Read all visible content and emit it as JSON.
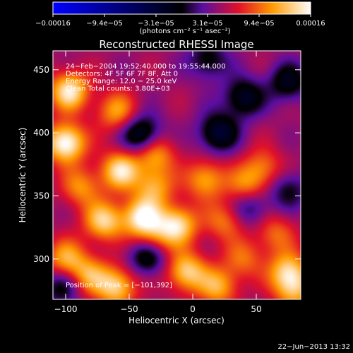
{
  "chart_data": {
    "type": "heatmap",
    "title": "Reconstructed RHESSI Image",
    "xlabel": "Heliocentric X (arcsec)",
    "ylabel": "Heliocentric Y (arcsec)",
    "xlim": [
      -110,
      85
    ],
    "ylim": [
      268,
      465
    ],
    "x_ticks": [
      -100,
      -50,
      0,
      50
    ],
    "y_ticks": [
      300,
      350,
      400,
      450
    ],
    "x_tick_labels": [
      "−100",
      "−50",
      "0",
      "50"
    ],
    "y_tick_labels": [
      "300",
      "350",
      "400",
      "450"
    ],
    "colorbar": {
      "tick_labels": [
        "−0.00016",
        "−9.4e−05",
        "−3.1e−05",
        "3.1e−05",
        "9.4e−05",
        "0.00016"
      ],
      "unit_label": "(photons cm⁻² s⁻¹ asec⁻²)",
      "range": [
        -0.00016,
        0.00016
      ],
      "colors": [
        "#0000ff",
        "#000000",
        "#ff0000",
        "#ffffff"
      ]
    },
    "annotations": [
      "24−Feb−2004 19:52:40.000 to 19:55:44.000",
      "Detectors: 4F 5F 6F 7F 8F, Att 0",
      "Energy Range: 12.0 − 25.0 keV",
      "Clean    Total counts: 3.80E+03"
    ],
    "peak_label": "Position of Peak = [−101,392]",
    "peak": {
      "x": -101,
      "y": 392
    },
    "blobs": [
      {
        "x": -100,
        "y": 392,
        "v": 1.0
      },
      {
        "x": -97,
        "y": 433,
        "v": 0.85
      },
      {
        "x": -60,
        "y": 417,
        "v": 0.55
      },
      {
        "x": -88,
        "y": 357,
        "v": 0.5
      },
      {
        "x": -57,
        "y": 370,
        "v": 0.8
      },
      {
        "x": -30,
        "y": 383,
        "v": 0.6
      },
      {
        "x": -30,
        "y": 357,
        "v": 0.55
      },
      {
        "x": 10,
        "y": 363,
        "v": 0.6
      },
      {
        "x": 42,
        "y": 357,
        "v": 0.5
      },
      {
        "x": 55,
        "y": 372,
        "v": 0.45
      },
      {
        "x": -70,
        "y": 330,
        "v": 0.75
      },
      {
        "x": -40,
        "y": 333,
        "v": 0.85
      },
      {
        "x": -12,
        "y": 327,
        "v": 0.8
      },
      {
        "x": -30,
        "y": 315,
        "v": 0.5
      },
      {
        "x": 25,
        "y": 330,
        "v": 0.45
      },
      {
        "x": 65,
        "y": 320,
        "v": 0.4
      },
      {
        "x": -100,
        "y": 300,
        "v": 0.6
      },
      {
        "x": -82,
        "y": 287,
        "v": 0.55
      },
      {
        "x": -60,
        "y": 278,
        "v": 0.75
      },
      {
        "x": -5,
        "y": 290,
        "v": 0.75
      },
      {
        "x": 20,
        "y": 278,
        "v": 0.6
      },
      {
        "x": 75,
        "y": 290,
        "v": 0.7
      },
      {
        "x": 80,
        "y": 275,
        "v": 0.55
      },
      {
        "x": 40,
        "y": 300,
        "v": 0.4
      }
    ],
    "dips": [
      {
        "x": -40,
        "y": 398,
        "v": 0.55
      },
      {
        "x": 20,
        "y": 400,
        "v": 0.5
      },
      {
        "x": 40,
        "y": 428,
        "v": 0.45
      },
      {
        "x": 75,
        "y": 440,
        "v": 0.4
      },
      {
        "x": -35,
        "y": 303,
        "v": 0.5
      },
      {
        "x": 45,
        "y": 342,
        "v": 0.35
      },
      {
        "x": 75,
        "y": 355,
        "v": 0.3
      },
      {
        "x": 12,
        "y": 458,
        "v": 0.35
      },
      {
        "x": -103,
        "y": 278,
        "v": 0.35
      }
    ],
    "background": 0.3
  },
  "footer": {
    "timestamp": "22−Jun−2013 13:32"
  }
}
